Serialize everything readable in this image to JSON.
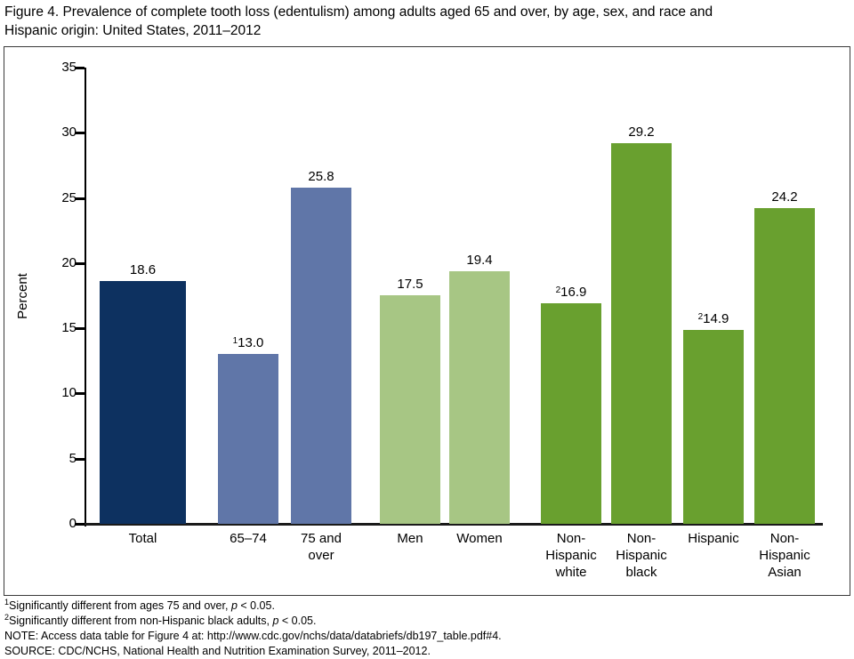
{
  "header": {
    "line1": "Figure 4. Prevalence of complete tooth loss (edentulism) among adults aged 65 and over, by age, sex, and race and",
    "line2": "Hispanic origin: United States, 2011–2012"
  },
  "chart_data": {
    "type": "bar",
    "title": "Figure 4. Prevalence of complete tooth loss (edentulism) among adults aged 65 and over, by age, sex, and race and Hispanic origin: United States, 2011–2012",
    "categories": [
      "Total",
      "65–74",
      "75 and over",
      "Men",
      "Women",
      "Non-Hispanic white",
      "Non-Hispanic black",
      "Hispanic",
      "Non-Hispanic Asian"
    ],
    "values": [
      18.6,
      13.0,
      25.8,
      17.5,
      19.4,
      16.9,
      29.2,
      14.9,
      24.2
    ],
    "value_labels": [
      "18.6",
      "13.0",
      "25.8",
      "17.5",
      "19.4",
      "16.9",
      "29.2",
      "14.9",
      "24.2"
    ],
    "value_superscripts": [
      "",
      "1",
      "",
      "",
      "",
      "2",
      "",
      "2",
      ""
    ],
    "category_label_lines": [
      [
        "Total"
      ],
      [
        "65–74"
      ],
      [
        "75 and",
        "over"
      ],
      [
        "Men"
      ],
      [
        "Women"
      ],
      [
        "Non-",
        "Hispanic",
        "white"
      ],
      [
        "Non-",
        "Hispanic",
        "black"
      ],
      [
        "Hispanic"
      ],
      [
        "Non-",
        "Hispanic",
        "Asian"
      ]
    ],
    "bar_colors": [
      "#0d3160",
      "#6076a8",
      "#6076a8",
      "#a7c684",
      "#a7c684",
      "#69a02f",
      "#69a02f",
      "#69a02f",
      "#69a02f"
    ],
    "group_colors": {
      "total": "#0d3160",
      "age": "#6076a8",
      "sex": "#a7c684",
      "race_hispanic_origin": "#69a02f"
    },
    "xlabel": "",
    "ylabel": "Percent",
    "ylim": [
      0,
      35
    ],
    "yticks": [
      0,
      5,
      10,
      15,
      20,
      25,
      30,
      35
    ],
    "grid": false,
    "legend": "none"
  },
  "footnotes": [
    {
      "marker": "1",
      "text": "Significantly different from ages 75 and over, ",
      "p_italic": "p",
      "p_rest": " < 0.05."
    },
    {
      "marker": "2",
      "text": "Significantly different from non-Hispanic black adults, ",
      "p_italic": "p",
      "p_rest": " < 0.05."
    },
    {
      "text": "NOTE: Access data table for Figure 4 at: http://www.cdc.gov/nchs/data/databriefs/db197_table.pdf#4."
    },
    {
      "text": "SOURCE: CDC/NCHS, National Health and Nutrition Examination Survey, 2011–2012."
    }
  ]
}
